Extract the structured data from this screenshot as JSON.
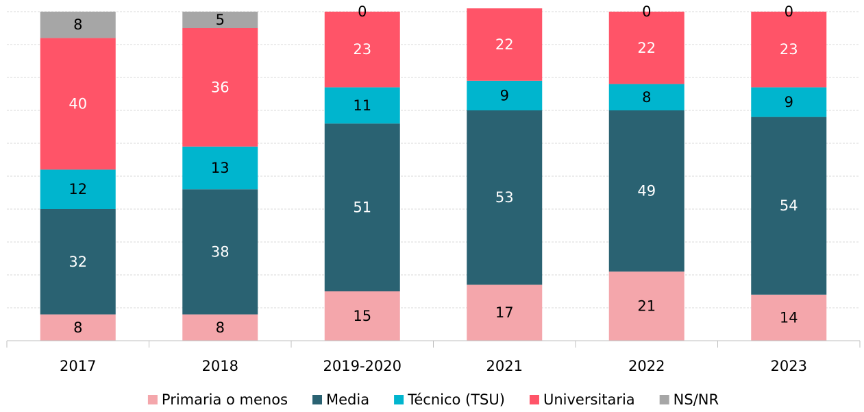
{
  "chart_data": {
    "type": "stacked_bar",
    "categories": [
      "2017",
      "2018",
      "2019-2020",
      "2021",
      "2022",
      "2023"
    ],
    "series": [
      {
        "name": "Primaria o menos",
        "color": "#f4a6ab",
        "values": [
          8,
          8,
          15,
          17,
          21,
          14
        ]
      },
      {
        "name": "Media",
        "color": "#2a6272",
        "values": [
          32,
          38,
          51,
          53,
          49,
          54
        ]
      },
      {
        "name": "Técnico (TSU)",
        "color": "#00b5ce",
        "values": [
          12,
          13,
          11,
          9,
          8,
          9
        ]
      },
      {
        "name": "Universitaria",
        "color": "#ff5468",
        "values": [
          40,
          36,
          23,
          22,
          22,
          23
        ]
      },
      {
        "name": "NS/NR",
        "color": "#a6a6a6",
        "values": [
          8,
          5,
          0,
          null,
          0,
          0
        ]
      }
    ],
    "ylim": [
      0,
      100
    ],
    "yticks": [
      0,
      10,
      20,
      30,
      40,
      50,
      60,
      70,
      80,
      90,
      100
    ],
    "grid": true,
    "legend": "bottom"
  }
}
